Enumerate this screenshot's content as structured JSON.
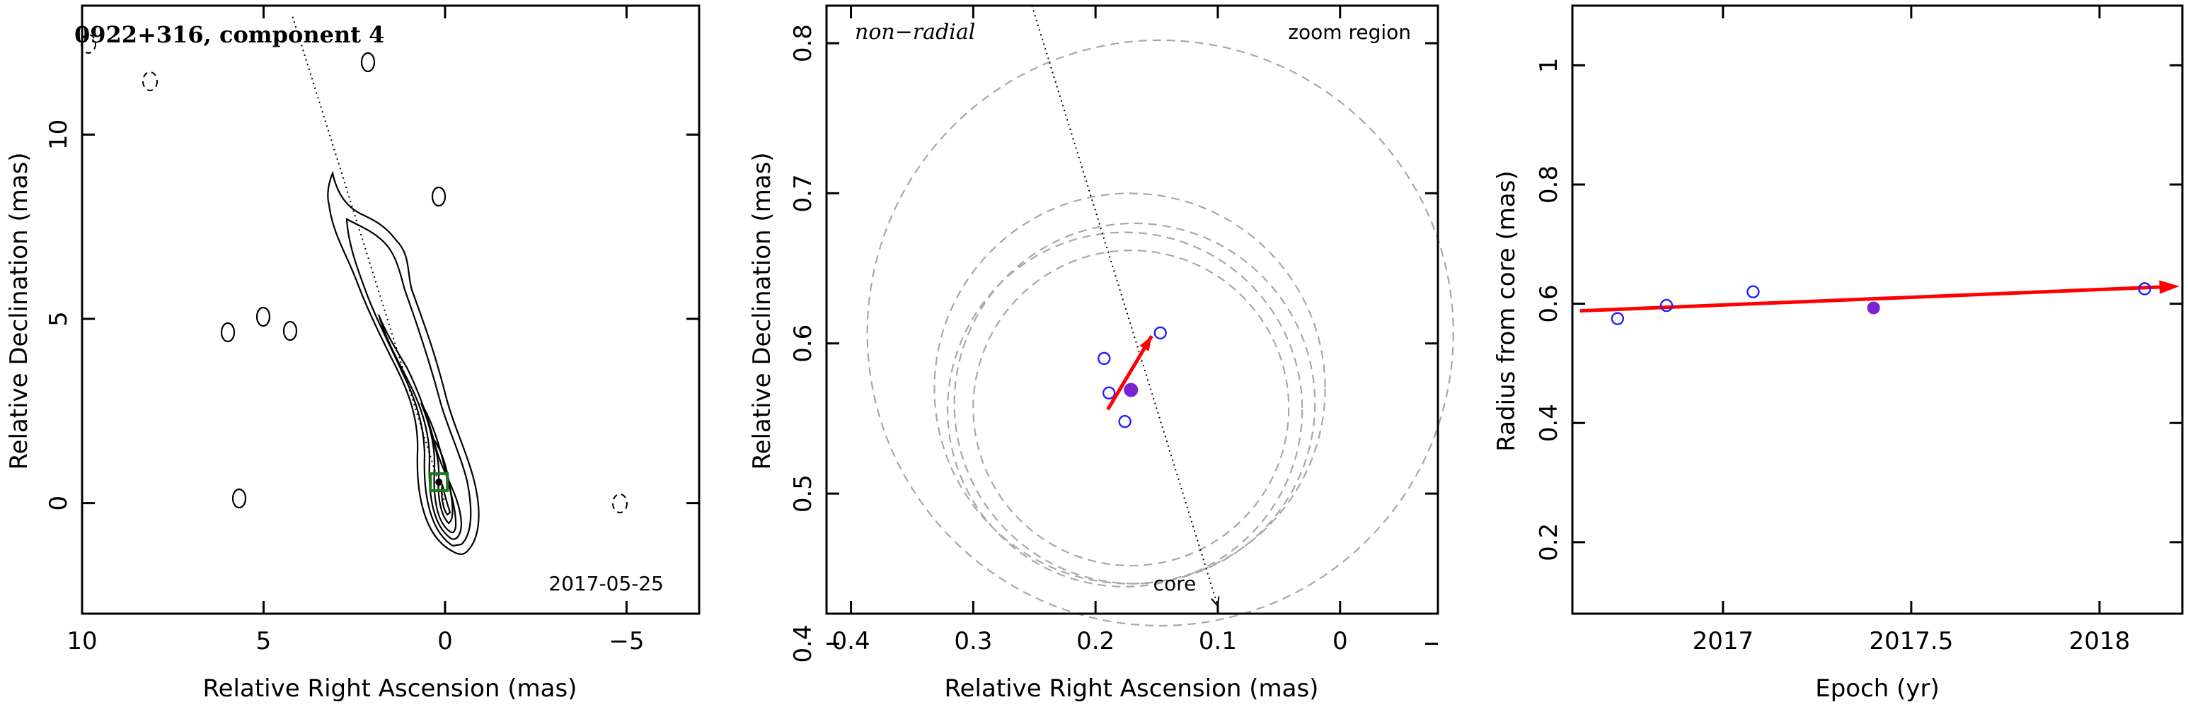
{
  "chart_data": [
    {
      "type": "scatter",
      "subtype": "contour-map",
      "title": "0922+316, component 4",
      "annotation": "2017-05-25",
      "xlabel": "Relative Right Ascension (mas)",
      "ylabel": "Relative Declination (mas)",
      "xlim": [
        10,
        -7
      ],
      "ylim": [
        -3,
        13.5
      ],
      "xticks": [
        10,
        5,
        0,
        -5
      ],
      "xtick_labels": [
        "10",
        "5",
        "0",
        "−5"
      ],
      "yticks": [
        0,
        5,
        10
      ],
      "ytick_labels": [
        "0",
        "5",
        "10"
      ],
      "component_marker": {
        "x": 0.17,
        "y": 0.57,
        "color": "#1a7a1a"
      },
      "jet_axis": {
        "from": [
          4.2,
          13.2
        ],
        "to": [
          0.0,
          0.0
        ]
      },
      "grid": false
    },
    {
      "type": "scatter",
      "title": "non−radial",
      "annotation": "zoom region",
      "core_label": "core",
      "xlabel": "Relative Right Ascension (mas)",
      "ylabel": "Relative Declination (mas)",
      "xlim": [
        0.42,
        -0.08
      ],
      "ylim": [
        0.42,
        0.825
      ],
      "xticks": [
        0.4,
        0.3,
        0.2,
        0.1,
        0
      ],
      "xtick_labels": [
        "0.4",
        "0.3",
        "0.2",
        "0.1",
        "0"
      ],
      "yticks": [
        0.4,
        0.5,
        0.6,
        0.7,
        0.8
      ],
      "ytick_labels": [
        "0.4",
        "0.5",
        "0.6",
        "0.7",
        "0.8"
      ],
      "open_points": [
        {
          "x": 0.193,
          "y": 0.59
        },
        {
          "x": 0.189,
          "y": 0.567
        },
        {
          "x": 0.176,
          "y": 0.548
        },
        {
          "x": 0.147,
          "y": 0.607
        }
      ],
      "filled_point": {
        "x": 0.171,
        "y": 0.569
      },
      "circles": [
        {
          "x": 0.147,
          "y": 0.607,
          "r": 0.195
        },
        {
          "x": 0.172,
          "y": 0.57,
          "r": 0.13
        },
        {
          "x": 0.168,
          "y": 0.56,
          "r": 0.12
        },
        {
          "x": 0.176,
          "y": 0.556,
          "r": 0.118
        },
        {
          "x": 0.171,
          "y": 0.557,
          "r": 0.105
        }
      ],
      "motion_vector": {
        "from": [
          0.19,
          0.556
        ],
        "to": [
          0.154,
          0.605
        ]
      },
      "jet_axis": {
        "from": [
          0.252,
          0.825
        ],
        "to": [
          0.1,
          0.425
        ]
      },
      "grid": false
    },
    {
      "type": "scatter",
      "xlabel": "Epoch (yr)",
      "ylabel": "Radius from core (mas)",
      "xlim": [
        2016.6,
        2018.22
      ],
      "ylim": [
        0.08,
        1.1
      ],
      "xticks": [
        2017,
        2017.5,
        2018
      ],
      "xtick_labels": [
        "2017",
        "2017.5",
        "2018"
      ],
      "yticks": [
        0.2,
        0.4,
        0.6,
        0.8,
        1.0
      ],
      "ytick_labels": [
        "0.2",
        "0.4",
        "0.6",
        "0.8",
        "1"
      ],
      "open_points": [
        {
          "x": 2016.72,
          "y": 0.575
        },
        {
          "x": 2016.85,
          "y": 0.597
        },
        {
          "x": 2017.08,
          "y": 0.62
        },
        {
          "x": 2018.12,
          "y": 0.625
        }
      ],
      "filled_point": {
        "x": 2017.4,
        "y": 0.593
      },
      "fit_line": {
        "from": [
          2016.62,
          0.588
        ],
        "to": [
          2018.22,
          0.628
        ]
      },
      "grid": false
    }
  ],
  "colors": {
    "fit": "#ff0000",
    "open_marker": "#1f1fff",
    "filled_marker": "#7a22d4",
    "circle": "#a8a8a8",
    "box": "#1a7a1a"
  }
}
